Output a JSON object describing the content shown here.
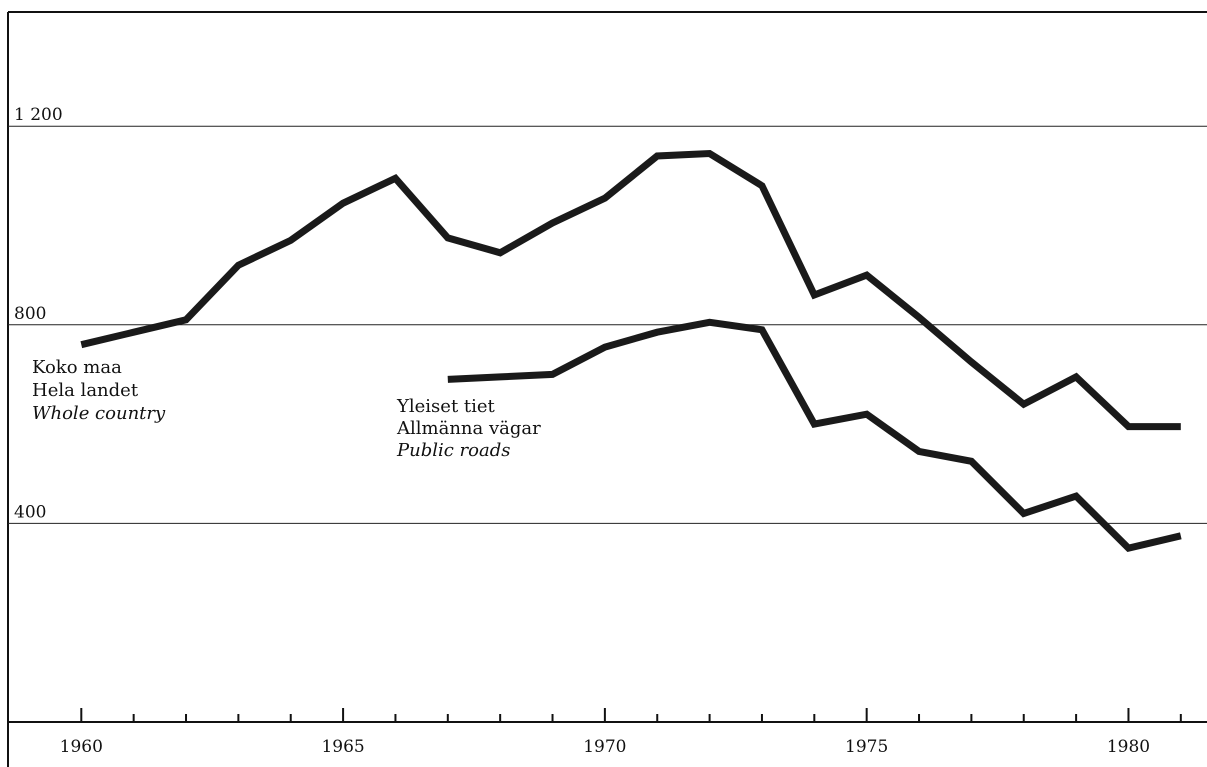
{
  "chart_data": {
    "type": "line",
    "title": "",
    "xlabel": "",
    "ylabel": "",
    "xlim": [
      1958.6,
      1981.5
    ],
    "ylim": [
      0,
      1430
    ],
    "x_ticks": [
      1960,
      1965,
      1970,
      1975,
      1980
    ],
    "x_tick_labels": [
      "1960",
      "1965",
      "1970",
      "1975",
      "1980"
    ],
    "y_ticks": [
      400,
      800,
      1200
    ],
    "y_tick_labels": [
      "400",
      "800",
      "1 200"
    ],
    "grid": "horizontal",
    "colors": {
      "line": "#1a1a1a",
      "text": "#111111",
      "background": "#ffffff"
    },
    "series": [
      {
        "name_lines": [
          "Koko maa",
          "Hela landet",
          "Whole country"
        ],
        "x": [
          1960,
          1961,
          1962,
          1963,
          1964,
          1965,
          1966,
          1967,
          1968,
          1969,
          1970,
          1971,
          1972,
          1973,
          1974,
          1975,
          1976,
          1977,
          1978,
          1979,
          1980,
          1981
        ],
        "values": [
          760,
          785,
          810,
          920,
          970,
          1045,
          1095,
          975,
          945,
          1005,
          1055,
          1140,
          1145,
          1080,
          860,
          900,
          815,
          725,
          640,
          695,
          595,
          595
        ]
      },
      {
        "name_lines": [
          "Yleiset tiet",
          "Allmänna vägar",
          "Public roads"
        ],
        "x": [
          1967,
          1968,
          1969,
          1970,
          1971,
          1972,
          1973,
          1974,
          1975,
          1976,
          1977,
          1978,
          1979,
          1980,
          1981
        ],
        "values": [
          690,
          695,
          700,
          755,
          785,
          805,
          790,
          600,
          620,
          545,
          525,
          420,
          455,
          350,
          375
        ]
      }
    ]
  }
}
